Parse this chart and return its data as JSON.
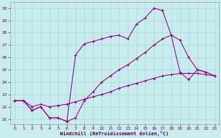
{
  "background_color": "#c8ecec",
  "grid_color": "#a8d8d8",
  "line_color": "#990099",
  "xlabel": "Windchill (Refroidissement éolien,°C)",
  "xlim_min": -0.5,
  "xlim_max": 23.5,
  "ylim_min": 20.6,
  "ylim_max": 30.5,
  "yticks": [
    21,
    22,
    23,
    24,
    25,
    26,
    27,
    28,
    29,
    30
  ],
  "xticks": [
    0,
    1,
    2,
    3,
    4,
    5,
    6,
    7,
    8,
    9,
    10,
    11,
    12,
    13,
    14,
    15,
    16,
    17,
    18,
    19,
    20,
    21,
    22,
    23
  ],
  "line1_x": [
    0,
    1,
    2,
    3,
    4,
    5,
    6,
    7,
    8,
    9,
    10,
    11,
    12,
    13,
    14,
    15,
    16,
    17,
    18,
    19,
    20,
    21,
    22,
    23
  ],
  "line1_y": [
    22.5,
    22.5,
    22.0,
    22.2,
    22.0,
    22.1,
    22.2,
    22.4,
    22.6,
    22.8,
    23.0,
    23.2,
    23.5,
    23.7,
    23.9,
    24.1,
    24.3,
    24.5,
    24.6,
    24.7,
    24.7,
    24.7,
    24.6,
    24.5
  ],
  "line2_x": [
    0,
    1,
    2,
    3,
    4,
    5,
    6,
    7,
    8,
    9,
    10,
    11,
    12,
    13,
    14,
    15,
    16,
    17,
    18,
    19,
    20,
    21,
    22,
    23
  ],
  "line2_y": [
    22.5,
    22.5,
    21.7,
    22.0,
    21.1,
    21.1,
    20.8,
    26.2,
    27.1,
    27.3,
    27.5,
    27.7,
    27.8,
    27.5,
    28.7,
    29.2,
    30.0,
    29.8,
    27.8,
    24.8,
    24.2,
    25.0,
    24.8,
    24.5
  ],
  "line3_x": [
    0,
    1,
    2,
    3,
    4,
    5,
    6,
    7,
    8,
    9,
    10,
    11,
    12,
    13,
    14,
    15,
    16,
    17,
    18,
    19,
    20,
    21,
    22,
    23
  ],
  "line3_y": [
    22.5,
    22.5,
    21.7,
    22.0,
    21.1,
    21.1,
    20.8,
    21.1,
    22.5,
    23.2,
    24.0,
    24.5,
    25.0,
    25.4,
    25.9,
    26.4,
    27.0,
    27.5,
    27.8,
    27.4,
    26.0,
    25.0,
    24.8,
    24.5
  ]
}
